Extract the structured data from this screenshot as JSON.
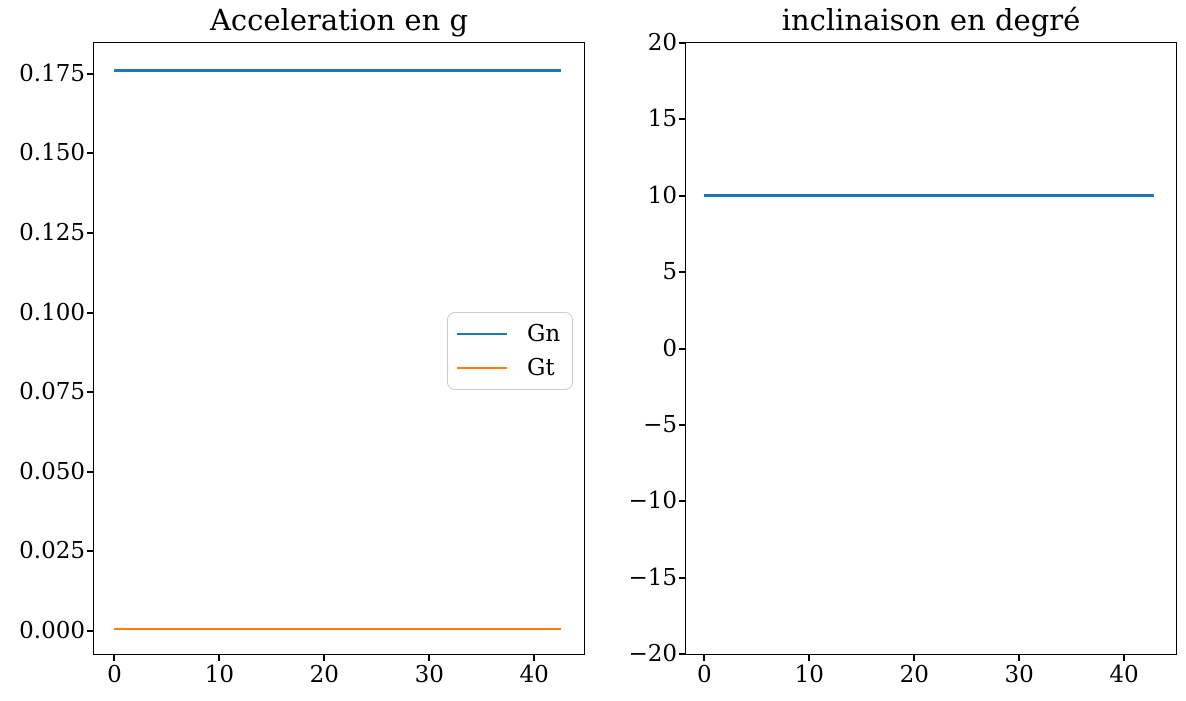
{
  "figure": {
    "background": "#ffffff",
    "text_color": "#000000"
  },
  "chart_data": [
    {
      "type": "line",
      "title": "Acceleration en g",
      "xlabel": "",
      "ylabel": "",
      "grid": false,
      "xlim": [
        -1.95,
        44.75
      ],
      "ylim": [
        -0.0072,
        0.1846
      ],
      "x_ticks": [
        0,
        10,
        20,
        30,
        40
      ],
      "x_tick_labels": [
        "0",
        "10",
        "20",
        "30",
        "40"
      ],
      "y_ticks": [
        0.0,
        0.025,
        0.05,
        0.075,
        0.1,
        0.125,
        0.15,
        0.175
      ],
      "y_tick_labels": [
        "0.000",
        "0.025",
        "0.050",
        "0.075",
        "0.100",
        "0.125",
        "0.150",
        "0.175"
      ],
      "series": [
        {
          "name": "Gn",
          "color": "#1f77b4",
          "y_value": 0.176,
          "x_start": 0,
          "x_end": 42.6,
          "shape": "constant"
        },
        {
          "name": "Gt",
          "color": "#ff7f0e",
          "y_value": 0.0007,
          "x_start": 0,
          "x_end": 42.6,
          "shape": "constant"
        }
      ],
      "legend": {
        "visible": true,
        "position": "center-right",
        "entries": [
          {
            "label": "Gn",
            "color": "#1f77b4"
          },
          {
            "label": "Gt",
            "color": "#ff7f0e"
          }
        ]
      }
    },
    {
      "type": "line",
      "title": "inclinaison en degré",
      "xlabel": "",
      "ylabel": "",
      "grid": false,
      "xlim": [
        -1.75,
        44.95
      ],
      "ylim": [
        -20,
        20
      ],
      "x_ticks": [
        0,
        10,
        20,
        30,
        40
      ],
      "x_tick_labels": [
        "0",
        "10",
        "20",
        "30",
        "40"
      ],
      "y_ticks": [
        -20,
        -15,
        -10,
        -5,
        0,
        5,
        10,
        15,
        20
      ],
      "y_tick_labels": [
        "−20",
        "−15",
        "−10",
        "−5",
        "0",
        "5",
        "10",
        "15",
        "20"
      ],
      "series": [
        {
          "name": "inclinaison",
          "color": "#1f77b4",
          "y_value": 10.0,
          "x_start": 0,
          "x_end": 42.9,
          "shape": "constant"
        }
      ],
      "legend": {
        "visible": false,
        "entries": []
      }
    }
  ]
}
